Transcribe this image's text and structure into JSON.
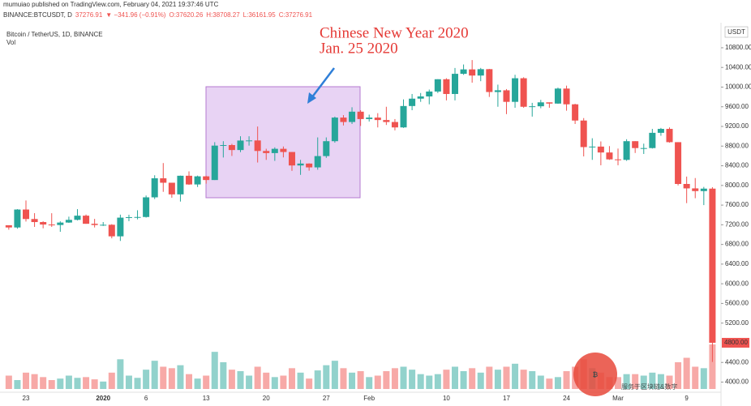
{
  "header": {
    "published": "mumuiao published on TradingView.com, February 04, 2021 19:37:46 UTC",
    "symbol_line": [
      "BINANCE:BTCUSDT, D",
      "37276.91",
      "▼ −341.96 (−0.91%)",
      "O:37620.26",
      "H:38708.27",
      "L:36161.95",
      "C:37276.91"
    ]
  },
  "watermark": "服务于区块链&数字",
  "chart_data": {
    "type": "candlestick",
    "title": "Bitcoin / TetherUS, 1D, BINANCE",
    "volume_label": "Vol",
    "currency_label": "USDT",
    "annotation": [
      "Chinese New Year 2020",
      "Jan. 25 2020"
    ],
    "up_color": "#26a69a",
    "down_color": "#ef5350",
    "categories": [
      null,
      null,
      "23",
      null,
      null,
      null,
      null,
      null,
      null,
      null,
      null,
      "2020",
      null,
      null,
      null,
      null,
      "6",
      null,
      null,
      null,
      null,
      null,
      null,
      "13",
      null,
      null,
      null,
      null,
      null,
      null,
      "20",
      null,
      null,
      null,
      null,
      null,
      null,
      "27",
      null,
      null,
      null,
      null,
      "Feb",
      null,
      null,
      null,
      null,
      null,
      null,
      null,
      null,
      "10",
      null,
      null,
      null,
      null,
      null,
      null,
      "17",
      null,
      null,
      null,
      null,
      null,
      null,
      "24",
      null,
      null,
      null,
      null,
      null,
      "Mar",
      null,
      null,
      null,
      null,
      null,
      null,
      null,
      "9",
      null,
      null,
      null
    ],
    "open": [
      7190,
      7145,
      7510,
      7317,
      7255,
      7205,
      7195,
      7245,
      7300,
      7385,
      7220,
      7195,
      7200,
      6965,
      7345,
      7355,
      7358,
      7758,
      8145,
      8055,
      7818,
      8197,
      8020,
      8185,
      8110,
      8810,
      8821,
      8720,
      8913,
      8915,
      8701,
      8658,
      8745,
      8680,
      8406,
      8445,
      8367,
      8597,
      8900,
      9380,
      9290,
      9500,
      9350,
      9380,
      9330,
      9290,
      9180,
      9615,
      9765,
      9810,
      9910,
      10160,
      9860,
      10270,
      10360,
      10235,
      10365,
      9900,
      9935,
      9700,
      10180,
      9600,
      9610,
      9690,
      9665,
      9970,
      9650,
      9320,
      8780,
      8790,
      8670,
      8530,
      8520,
      8900,
      8760,
      8760,
      9070,
      9150,
      8880,
      8030,
      7940,
      7885,
      7935
    ],
    "high": [
      7190,
      7518,
      7695,
      7436,
      7271,
      7435,
      7270,
      7365,
      7518,
      7408,
      7320,
      7255,
      7212,
      7406,
      7404,
      7495,
      7795,
      8207,
      8455,
      8055,
      8200,
      8286,
      8200,
      8197,
      8880,
      8900,
      8846,
      9000,
      9000,
      9198,
      8746,
      8775,
      8792,
      8680,
      8520,
      8450,
      8977,
      8977,
      9400,
      9430,
      9590,
      9530,
      9440,
      9470,
      9600,
      9350,
      9750,
      9860,
      9880,
      9950,
      10160,
      10180,
      10390,
      10460,
      10550,
      10390,
      10370,
      10050,
      9960,
      10250,
      10200,
      9680,
      9740,
      9690,
      9990,
      10030,
      9660,
      9370,
      8960,
      8895,
      8800,
      8750,
      8940,
      8900,
      8850,
      9150,
      9170,
      9180,
      8880,
      8180,
      8150,
      7970,
      7965
    ],
    "low": [
      7100,
      7120,
      7265,
      7157,
      7128,
      7157,
      7057,
      7238,
      7288,
      7220,
      7145,
      7175,
      6924,
      6871,
      7273,
      7310,
      7346,
      7723,
      7870,
      7750,
      7672,
      8012,
      7968,
      8036,
      8110,
      8568,
      8600,
      8676,
      8810,
      8466,
      8520,
      8500,
      8570,
      8296,
      8215,
      8300,
      8320,
      8560,
      8870,
      9220,
      9250,
      9210,
      9300,
      9180,
      9230,
      9120,
      9170,
      9530,
      9700,
      9650,
      9880,
      9730,
      9730,
      10250,
      10090,
      10120,
      9800,
      9600,
      9450,
      9580,
      9580,
      9400,
      9570,
      9580,
      9660,
      9520,
      9250,
      8590,
      8520,
      8410,
      8520,
      8410,
      8500,
      8660,
      8640,
      8750,
      9010,
      8870,
      8000,
      7640,
      7740,
      7600,
      4410
    ],
    "close": [
      7145,
      7510,
      7317,
      7255,
      7205,
      7195,
      7245,
      7300,
      7385,
      7220,
      7195,
      7200,
      6965,
      7345,
      7355,
      7358,
      7758,
      8145,
      8055,
      7818,
      8197,
      8020,
      8185,
      8110,
      8810,
      8821,
      8720,
      8913,
      8915,
      8701,
      8658,
      8745,
      8680,
      8406,
      8445,
      8367,
      8597,
      8900,
      9380,
      9290,
      9500,
      9350,
      9380,
      9330,
      9290,
      9180,
      9615,
      9765,
      9810,
      9910,
      10160,
      9860,
      10270,
      10360,
      10235,
      10365,
      9900,
      9935,
      9700,
      10180,
      9600,
      9610,
      9690,
      9665,
      9970,
      9650,
      9320,
      8780,
      8790,
      8670,
      8530,
      8520,
      8900,
      8760,
      8760,
      9070,
      9150,
      8880,
      8030,
      7940,
      7885,
      7935,
      4800
    ],
    "volume": [
      18,
      12,
      22,
      20,
      16,
      12,
      14,
      18,
      15,
      16,
      13,
      10,
      22,
      40,
      18,
      15,
      26,
      38,
      30,
      28,
      32,
      20,
      14,
      18,
      50,
      36,
      26,
      24,
      18,
      30,
      22,
      16,
      18,
      28,
      22,
      14,
      25,
      32,
      38,
      28,
      22,
      24,
      16,
      18,
      24,
      28,
      30,
      26,
      20,
      18,
      20,
      26,
      30,
      24,
      28,
      22,
      30,
      26,
      30,
      34,
      26,
      24,
      18,
      14,
      16,
      24,
      30,
      40,
      28,
      22,
      16,
      16,
      20,
      20,
      18,
      22,
      20,
      18,
      36,
      42,
      30,
      28,
      60
    ],
    "last_price_label": "4800.00",
    "ylim": [
      3860,
      11310
    ],
    "yticks": [
      {
        "value": 4000,
        "label": "4000.00"
      },
      {
        "value": 4400,
        "label": "4400.00"
      },
      {
        "value": 5200,
        "label": "5200.00"
      },
      {
        "value": 5600,
        "label": "5600.00"
      },
      {
        "value": 6000,
        "label": "6000.00"
      },
      {
        "value": 6400,
        "label": "6400.00"
      },
      {
        "value": 6800,
        "label": "6800.00"
      },
      {
        "value": 7200,
        "label": "7200.00"
      },
      {
        "value": 7600,
        "label": "7600.00"
      },
      {
        "value": 8000,
        "label": "8000.00"
      },
      {
        "value": 8400,
        "label": "8400.00"
      },
      {
        "value": 8800,
        "label": "8800.00"
      },
      {
        "value": 9200,
        "label": "9200.00"
      },
      {
        "value": 9600,
        "label": "9600.00"
      },
      {
        "value": 10000,
        "label": "10000.00"
      },
      {
        "value": 10400,
        "label": "10400.00"
      },
      {
        "value": 10800,
        "label": "10800.00"
      }
    ]
  }
}
